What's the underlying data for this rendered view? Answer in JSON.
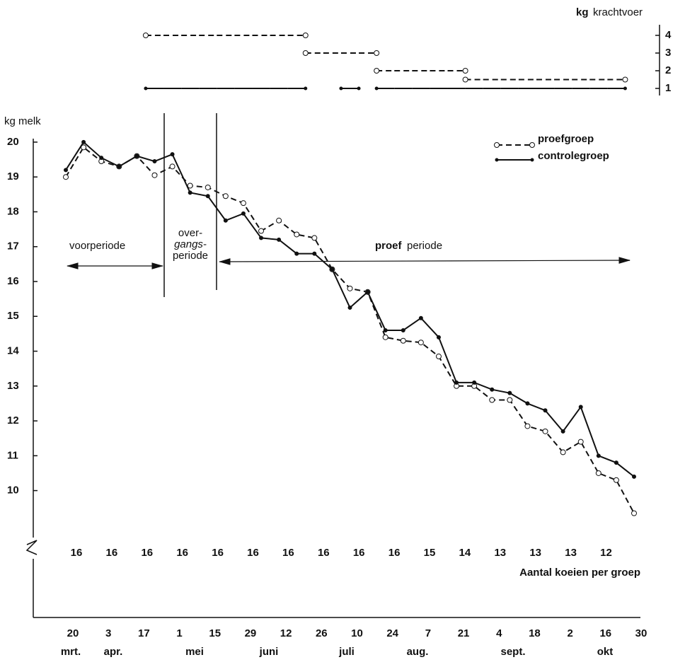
{
  "chart_data": [
    {
      "type": "line",
      "y_label": "kg melk",
      "categories": [
        "20",
        null,
        "3",
        null,
        "17",
        null,
        "1",
        null,
        "15",
        null,
        "29",
        null,
        "12",
        null,
        "26",
        null,
        "10",
        null,
        "24",
        null,
        "7",
        null,
        "21",
        null,
        "4",
        null,
        "18",
        null,
        "2",
        null,
        "16",
        null,
        "30"
      ],
      "month_labels": [
        "mrt.",
        "apr.",
        "mei",
        "juni",
        "juli",
        "aug.",
        "sept.",
        "okt"
      ],
      "series": [
        {
          "name": "proefgroep",
          "color": "#111",
          "values": [
            19.0,
            19.85,
            19.45,
            19.3,
            19.6,
            19.05,
            19.3,
            18.75,
            18.7,
            18.45,
            18.25,
            17.45,
            17.75,
            17.35,
            17.25,
            16.35,
            15.8,
            15.7,
            14.4,
            14.3,
            14.25,
            13.85,
            13.0,
            13.0,
            12.6,
            12.6,
            11.85,
            11.7,
            11.1,
            11.4,
            10.5,
            10.3,
            9.35
          ]
        },
        {
          "name": "controlegroep",
          "color": "#111",
          "values": [
            19.2,
            20.0,
            19.55,
            19.3,
            19.6,
            19.45,
            19.65,
            18.55,
            18.45,
            17.75,
            17.95,
            17.25,
            17.2,
            16.8,
            16.8,
            16.35,
            15.25,
            15.7,
            14.6,
            14.6,
            14.95,
            14.4,
            13.1,
            13.1,
            12.9,
            12.8,
            12.5,
            12.3,
            11.7,
            12.4,
            11.0,
            10.8,
            10.4
          ]
        }
      ],
      "ylim": [
        9.2,
        20.1
      ],
      "yticks": [
        20,
        19,
        18,
        17,
        16,
        15,
        14,
        13,
        12,
        11,
        10
      ],
      "annotations": {
        "voorperiode": "voorperiode",
        "overgang": [
          "over-",
          "gangs-",
          "periode"
        ],
        "proef_bold": "proef",
        "proef_rest": "periode"
      },
      "cow_counts": [
        16,
        16,
        16,
        16,
        16,
        16,
        16,
        16,
        16,
        16,
        15,
        14,
        13,
        13,
        13,
        12
      ],
      "cow_counts_label": "Aantal koeien per groep"
    },
    {
      "type": "step",
      "y_label_unit": "kg",
      "y_label": "krachtvoer",
      "series": [
        {
          "name": "proefgroep",
          "color": "#111",
          "values": [
            null,
            null,
            null,
            null,
            null,
            4,
            4,
            4,
            4,
            4,
            4,
            4,
            4,
            4,
            3,
            3,
            3,
            3,
            2,
            2,
            2,
            2,
            2,
            1.5,
            1.5,
            1.5,
            1.5,
            1.5,
            1.5,
            1.5,
            1.5,
            1.5,
            null
          ]
        },
        {
          "name": "controlegroep",
          "color": "#111",
          "values": [
            null,
            null,
            null,
            null,
            null,
            1,
            1,
            1,
            1,
            1,
            1,
            1,
            1,
            1,
            null,
            null,
            1,
            null,
            1,
            1,
            1,
            1,
            1,
            1,
            1,
            1,
            1,
            1,
            1,
            1,
            1,
            1,
            null
          ]
        }
      ],
      "ylim": [
        0.5,
        4.5
      ],
      "yticks": [
        4,
        3,
        2,
        1
      ]
    }
  ]
}
